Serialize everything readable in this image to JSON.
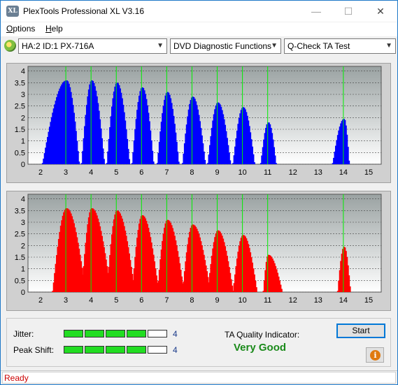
{
  "window": {
    "title": "PlexTools Professional XL V3.16",
    "icon_text": "XL",
    "controls": [
      "minimize-icon",
      "maximize-icon",
      "close-icon"
    ]
  },
  "menu": {
    "items": [
      {
        "label": "Options",
        "underline": "O",
        "rest": "ptions"
      },
      {
        "label": "Help",
        "underline": "H",
        "rest": "elp"
      }
    ]
  },
  "toolbar": {
    "device": "HA:2 ID:1  PX-716A",
    "function": "DVD Diagnostic Functions",
    "test": "Q-Check TA Test"
  },
  "chart_data": [
    {
      "type": "bar",
      "name": "top-chart",
      "color": "#0000ff",
      "x_ticks": [
        2,
        3,
        4,
        5,
        6,
        7,
        8,
        9,
        10,
        11,
        12,
        13,
        14,
        15
      ],
      "y_ticks": [
        "0",
        "0.5",
        "1",
        "1.5",
        "2",
        "2.5",
        "3",
        "3.5",
        "4"
      ],
      "xlim": [
        1.5,
        15.5
      ],
      "ylim": [
        0,
        4.2
      ],
      "green_markers": [
        3,
        4,
        5,
        6,
        7,
        8,
        9,
        10,
        11,
        14
      ],
      "peaks": [
        {
          "x": 3,
          "height": 3.6,
          "left": 2.05,
          "right": 3.5
        },
        {
          "x": 4,
          "height": 3.6,
          "left": 3.6,
          "right": 4.5
        },
        {
          "x": 5,
          "height": 3.5,
          "left": 4.6,
          "right": 5.5
        },
        {
          "x": 6,
          "height": 3.3,
          "left": 5.6,
          "right": 6.45
        },
        {
          "x": 7,
          "height": 3.1,
          "left": 6.6,
          "right": 7.45
        },
        {
          "x": 8,
          "height": 2.9,
          "left": 7.6,
          "right": 8.5
        },
        {
          "x": 9,
          "height": 2.65,
          "left": 8.6,
          "right": 9.5
        },
        {
          "x": 10,
          "height": 2.45,
          "left": 9.6,
          "right": 10.45
        },
        {
          "x": 11,
          "height": 1.8,
          "left": 10.7,
          "right": 11.3
        },
        {
          "x": 14,
          "height": 1.95,
          "left": 13.55,
          "right": 14.2
        }
      ]
    },
    {
      "type": "bar",
      "name": "bottom-chart",
      "color": "#ff0000",
      "x_ticks": [
        2,
        3,
        4,
        5,
        6,
        7,
        8,
        9,
        10,
        11,
        12,
        13,
        14,
        15
      ],
      "y_ticks": [
        "0",
        "0.5",
        "1",
        "1.5",
        "2",
        "2.5",
        "3",
        "3.5",
        "4"
      ],
      "xlim": [
        1.5,
        15.5
      ],
      "ylim": [
        0,
        4.2
      ],
      "green_markers": [
        3,
        4,
        5,
        6,
        7,
        8,
        9,
        10,
        11,
        14
      ],
      "peaks": [
        {
          "x": 3,
          "height": 3.6,
          "left": 2.45,
          "right": 3.75
        },
        {
          "x": 4,
          "height": 3.6,
          "left": 3.6,
          "right": 4.75
        },
        {
          "x": 5,
          "height": 3.5,
          "left": 4.6,
          "right": 5.7
        },
        {
          "x": 6,
          "height": 3.3,
          "left": 5.6,
          "right": 6.65
        },
        {
          "x": 7,
          "height": 3.1,
          "left": 6.6,
          "right": 7.65
        },
        {
          "x": 8,
          "height": 2.9,
          "left": 7.6,
          "right": 8.7
        },
        {
          "x": 9,
          "height": 2.65,
          "left": 8.6,
          "right": 9.6
        },
        {
          "x": 10,
          "height": 2.45,
          "left": 9.6,
          "right": 10.55
        },
        {
          "x": 11,
          "height": 1.6,
          "left": 10.8,
          "right": 11.55
        },
        {
          "x": 14,
          "height": 1.95,
          "left": 13.75,
          "right": 14.25
        }
      ]
    }
  ],
  "results": {
    "jitter_label": "Jitter:",
    "jitter_value": "4",
    "jitter_level": 4,
    "peak_shift_label": "Peak Shift:",
    "peak_shift_value": "4",
    "peak_shift_level": 4,
    "meter_segments": 5,
    "ta_label": "TA Quality Indicator:",
    "ta_value": "Very Good",
    "start_label": "Start"
  },
  "status": {
    "text": "Ready"
  }
}
